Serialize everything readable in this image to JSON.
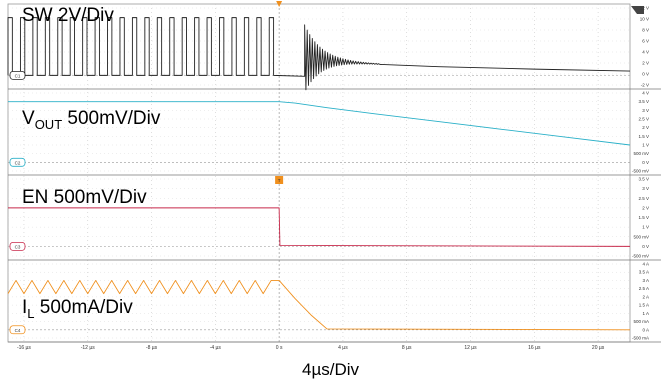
{
  "chart_data": {
    "type": "line",
    "timebase_label": "4µs/Div",
    "x_unit": "µs",
    "xlim": [
      -17,
      22
    ],
    "x_tick_labels": [
      "-16 µs",
      "-12 µs",
      "-8 µs",
      "-4 µs",
      "0 s",
      "4 µs",
      "8 µs",
      "12 µs",
      "16 µs",
      "20 µs"
    ],
    "grid": true,
    "trigger_marker": "T",
    "channels": [
      {
        "id": "C1",
        "label_main": "SW 2V/Div",
        "label_sub": "",
        "label_tail": "",
        "color": "#222222",
        "unit": "V",
        "tick_labels": [
          "12 V",
          "10 V",
          "8 V",
          "6 V",
          "4 V",
          "2 V",
          "0 V",
          "-2 V"
        ],
        "ylim": [
          -2,
          14
        ],
        "switching": {
          "high": 12,
          "low": 0,
          "period_us": 0.78,
          "stop_us": 0
        },
        "points": [
          [
            -17,
            0
          ],
          [
            0,
            0
          ],
          [
            0.1,
            -0.2
          ],
          [
            1.5,
            -0.2
          ],
          [
            1.6,
            10
          ],
          [
            2.5,
            4
          ],
          [
            4,
            2.6
          ],
          [
            6,
            2.2
          ],
          [
            10,
            1.8
          ],
          [
            16,
            1.3
          ],
          [
            22,
            0.9
          ]
        ]
      },
      {
        "id": "C2",
        "label_main": "V",
        "label_sub": "OUT",
        "label_tail": " 500mV/Div",
        "color": "#2ab0c8",
        "unit": "V",
        "tick_labels": [
          "4 V",
          "3.5 V",
          "3 V",
          "2.5 V",
          "2 V",
          "1.5 V",
          "1 V",
          "500 mV",
          "0 V",
          "-500 mV"
        ],
        "ylim": [
          -0.5,
          4
        ],
        "points": [
          [
            -17,
            3.5
          ],
          [
            0,
            3.5
          ],
          [
            1,
            3.42
          ],
          [
            3,
            3.15
          ],
          [
            6,
            2.8
          ],
          [
            10,
            2.35
          ],
          [
            14,
            1.9
          ],
          [
            18,
            1.45
          ],
          [
            22,
            1.0
          ]
        ]
      },
      {
        "id": "C3",
        "label_main": "EN 500mV/Div",
        "label_sub": "",
        "label_tail": "",
        "color": "#c8284a",
        "unit": "V",
        "tick_labels": [
          "3.5 V",
          "3 V",
          "2.5 V",
          "2 V",
          "1.5 V",
          "1 V",
          "500 mV",
          "0 V",
          "-500 mV"
        ],
        "ylim": [
          -0.5,
          3.5
        ],
        "points": [
          [
            -17,
            2.0
          ],
          [
            0,
            2.0
          ],
          [
            0.05,
            0.05
          ],
          [
            22,
            0.0
          ]
        ]
      },
      {
        "id": "C4",
        "label_main": "I",
        "label_sub": "L",
        "label_tail": " 500mA/Div",
        "color": "#f0901e",
        "unit": "A",
        "tick_labels": [
          "4 A",
          "3.5 A",
          "3 A",
          "2.5 A",
          "2 A",
          "1.5 A",
          "1 A",
          "500 mA",
          "0 A",
          "-500 mA"
        ],
        "ylim": [
          -0.5,
          4
        ],
        "ripple": {
          "high": 3.0,
          "low": 2.2,
          "period_us": 1.0
        },
        "points": [
          [
            0,
            3.0
          ],
          [
            1,
            1.9
          ],
          [
            2,
            0.9
          ],
          [
            3,
            0.05
          ],
          [
            22,
            0.0
          ]
        ]
      }
    ]
  }
}
